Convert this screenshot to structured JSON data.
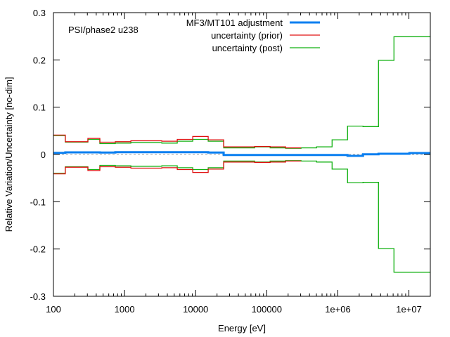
{
  "chart_data": {
    "type": "line",
    "subtype": "step",
    "title": "",
    "annotation": "PSI/phase2 u238",
    "xlabel": "Energy [eV]",
    "ylabel": "Relative Variation/Uncertainty [no-dim]",
    "xscale": "log",
    "xlim": [
      100,
      20000000
    ],
    "ylim": [
      -0.3,
      0.3
    ],
    "x_ticks": [
      {
        "value": 100,
        "label": "100"
      },
      {
        "value": 1000,
        "label": "1000"
      },
      {
        "value": 10000,
        "label": "10000"
      },
      {
        "value": 100000,
        "label": "100000"
      },
      {
        "value": 1000000,
        "label": "1e+06"
      },
      {
        "value": 10000000,
        "label": "1e+07"
      }
    ],
    "y_ticks": [
      {
        "value": 0.3,
        "label": "0.3"
      },
      {
        "value": 0.2,
        "label": "0.2"
      },
      {
        "value": 0.1,
        "label": "0.1"
      },
      {
        "value": 0,
        "label": "0"
      },
      {
        "value": -0.1,
        "label": "-0.1"
      },
      {
        "value": -0.2,
        "label": "-0.2"
      },
      {
        "value": -0.3,
        "label": "-0.3"
      }
    ],
    "grid": false,
    "legend_position": "top-center",
    "zero_line": {
      "value": 0,
      "color": "#a0a0a0",
      "style": "dotted"
    },
    "bin_edges": [
      100,
      147,
      305,
      449,
      742,
      1226,
      2023,
      3340,
      5515,
      9106,
      15030,
      24820,
      67630,
      111700,
      184400,
      304400,
      502600,
      829900,
      1370000,
      2262000,
      3735000,
      6167000,
      10180000,
      20000000
    ],
    "series": [
      {
        "name": "MF3/MT101 adjustment",
        "color": "#0a7ff0",
        "width": "thick",
        "values": [
          0.0034,
          0.0045,
          0.0045,
          0.004,
          0.0048,
          0.0048,
          0.0048,
          0.0048,
          0.0048,
          0.0048,
          0.004,
          -0.001,
          -0.001,
          -0.001,
          -0.001,
          -0.001,
          -0.001,
          -0.001,
          -0.003,
          0.0005,
          0.0015,
          0.0015,
          0.003
        ]
      },
      {
        "name": "uncertainty (prior)",
        "color": "#e01010",
        "width": "thin",
        "mirrored": true,
        "values": [
          0.041,
          0.027,
          0.034,
          0.026,
          0.027,
          0.029,
          0.029,
          0.028,
          0.032,
          0.038,
          0.031,
          0.016,
          0.017,
          0.016,
          0.014,
          null,
          null,
          null,
          null,
          null,
          null,
          null,
          null
        ]
      },
      {
        "name": "uncertainty (post)",
        "color": "#10b010",
        "width": "thin",
        "mirrored": true,
        "values": [
          0.04,
          0.026,
          0.032,
          0.023,
          0.024,
          0.025,
          0.025,
          0.024,
          0.028,
          0.032,
          0.028,
          0.014,
          0.016,
          0.014,
          0.013,
          0.014,
          0.016,
          0.031,
          0.06,
          0.059,
          0.199,
          0.249,
          0.249
        ]
      }
    ]
  }
}
